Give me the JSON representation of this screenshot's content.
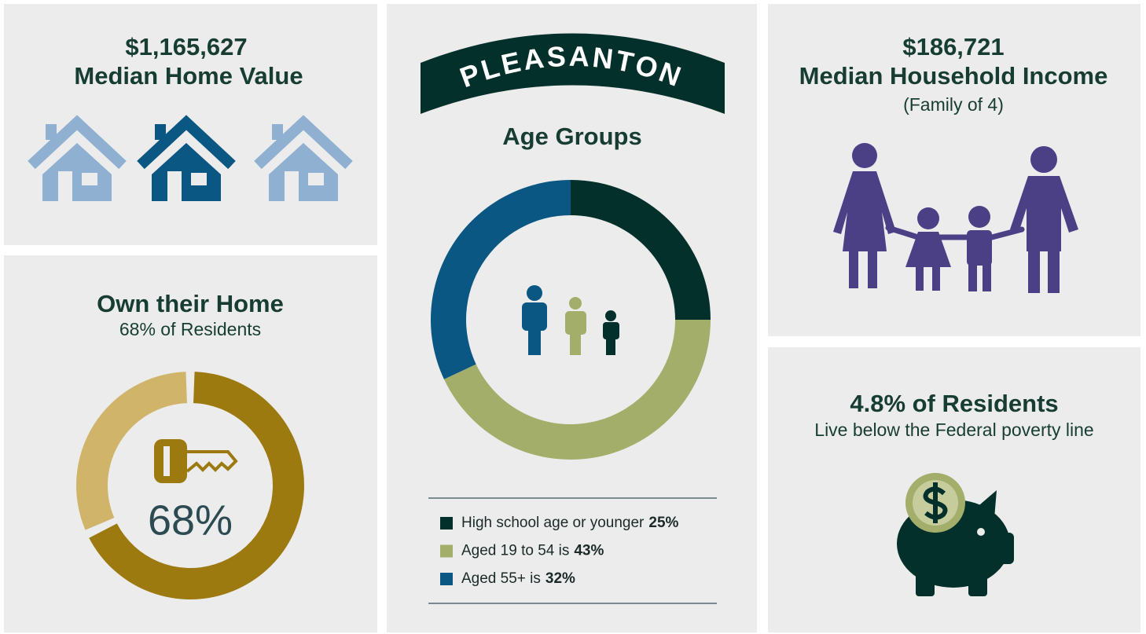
{
  "header": {
    "title": "PLEASANTON"
  },
  "home_value": {
    "value": "$1,165,627",
    "label": "Median Home Value"
  },
  "income": {
    "value": "$186,721",
    "label": "Median Household Income",
    "note": "(Family of 4)"
  },
  "poverty": {
    "title": "4.8% of Residents",
    "subtitle": "Live below the Federal poverty line"
  },
  "chart_data": [
    {
      "type": "donut",
      "title": "Own their Home",
      "subtitle": "68% of Residents",
      "categories": [
        null,
        null
      ],
      "values": [
        68,
        32
      ],
      "value_labels": [
        "68%",
        null
      ],
      "colors": [
        "#9c7a10",
        "#cfb46a"
      ]
    },
    {
      "type": "donut",
      "title": "Age Groups",
      "categories": [
        "High school age or younger",
        "Aged 19 to 54 is",
        "Aged 55+ is"
      ],
      "values": [
        25,
        43,
        32
      ],
      "value_labels": [
        "25%",
        "43%",
        "32%"
      ],
      "colors": [
        "#04302b",
        "#a3ae6a",
        "#0b5784"
      ]
    }
  ]
}
